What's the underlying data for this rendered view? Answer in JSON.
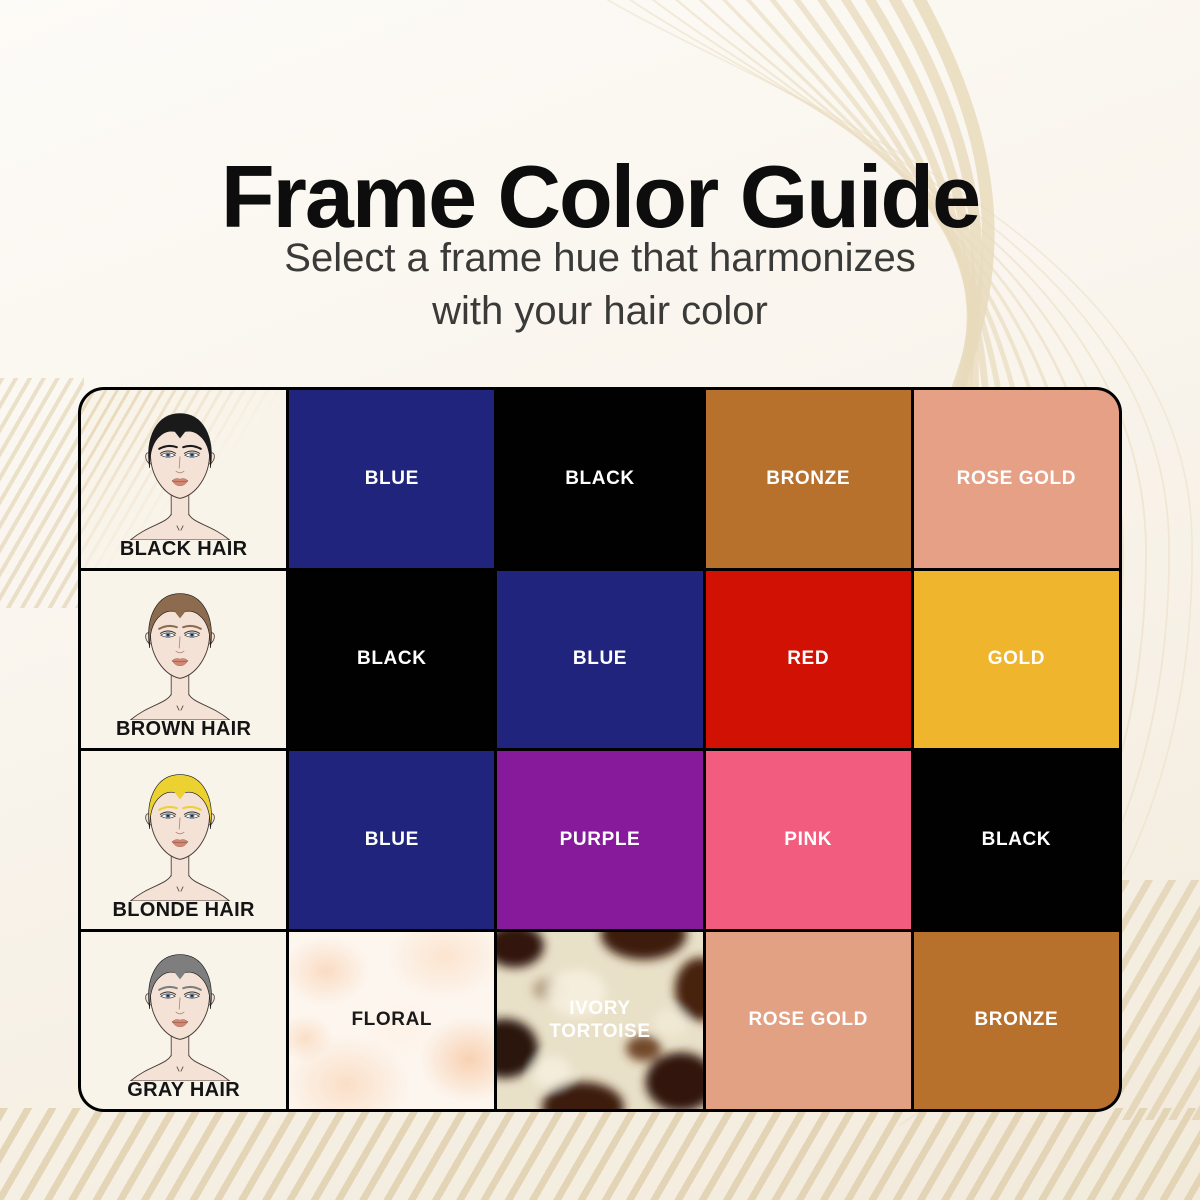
{
  "header": {
    "title": "Frame Color Guide",
    "subtitle_line1": "Select a frame hue that harmonizes",
    "subtitle_line2": "with your hair color"
  },
  "palette": {
    "page_background_top": "#fdfbf7",
    "page_background_bottom": "#f2ebdc",
    "swirl_line": "#e8dabc",
    "grid_border": "#000000",
    "face_cell_background": "#f9f4ea",
    "title_color": "#0d0d0d",
    "subtitle_color": "#3a3a38"
  },
  "rows": [
    {
      "hair_label": "BLACK HAIR",
      "hair_color": "#1a1a1a",
      "swatches": [
        {
          "label": "BLUE",
          "bg": "#20247d",
          "fg": "#ffffff"
        },
        {
          "label": "BLACK",
          "bg": "#010101",
          "fg": "#ffffff"
        },
        {
          "label": "BRONZE",
          "bg": "#b7712c",
          "fg": "#ffffff"
        },
        {
          "label": "ROSE GOLD",
          "bg": "#e5a086",
          "fg": "#ffffff"
        }
      ]
    },
    {
      "hair_label": "BROWN HAIR",
      "hair_color": "#8d6b4e",
      "swatches": [
        {
          "label": "BLACK",
          "bg": "#010101",
          "fg": "#ffffff"
        },
        {
          "label": "BLUE",
          "bg": "#20247d",
          "fg": "#ffffff"
        },
        {
          "label": "RED",
          "bg": "#d01103",
          "fg": "#ffffff"
        },
        {
          "label": "GOLD",
          "bg": "#efb52c",
          "fg": "#ffffff"
        }
      ]
    },
    {
      "hair_label": "BLONDE HAIR",
      "hair_color": "#ecd231",
      "swatches": [
        {
          "label": "BLUE",
          "bg": "#20247d",
          "fg": "#ffffff"
        },
        {
          "label": "PURPLE",
          "bg": "#861a9b",
          "fg": "#ffffff"
        },
        {
          "label": "PINK",
          "bg": "#f25c7e",
          "fg": "#ffffff"
        },
        {
          "label": "BLACK",
          "bg": "#010101",
          "fg": "#ffffff"
        }
      ]
    },
    {
      "hair_label": "GRAY HAIR",
      "hair_color": "#7e7e7e",
      "swatches": [
        {
          "label": "FLORAL",
          "bg": "#fdf6ef",
          "fg": "#1a1a1a",
          "texture": "floral"
        },
        {
          "label": "IVORY TORTOISE",
          "bg": "#e9e0c8",
          "fg": "#ffffff",
          "texture": "tortoise"
        },
        {
          "label": "ROSE GOLD",
          "bg": "#e2a183",
          "fg": "#ffffff"
        },
        {
          "label": "BRONZE",
          "bg": "#b7712c",
          "fg": "#ffffff"
        }
      ]
    }
  ]
}
